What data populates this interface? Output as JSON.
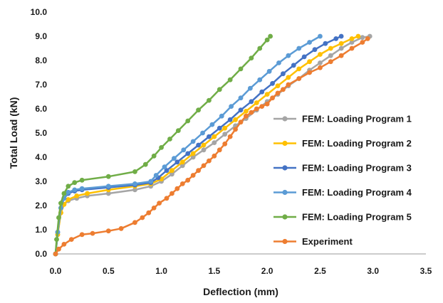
{
  "chart_data": {
    "type": "line",
    "title": "",
    "xlabel": "Deflection (mm)",
    "ylabel": "Total Load (kN)",
    "xlim": [
      0,
      3.5
    ],
    "ylim": [
      0,
      10
    ],
    "x_ticks": [
      "0.0",
      "0.5",
      "1.0",
      "1.5",
      "2.0",
      "2.5",
      "3.0",
      "3.5"
    ],
    "y_ticks": [
      "0.0",
      "1.0",
      "2.0",
      "3.0",
      "4.0",
      "5.0",
      "6.0",
      "7.0",
      "8.0",
      "9.0",
      "10.0"
    ],
    "grid": false,
    "legend_position": "right",
    "series": [
      {
        "name": "FEM: Loading Program 1",
        "color": "#a5a5a5",
        "points": [
          [
            0,
            0
          ],
          [
            0.02,
            0.8
          ],
          [
            0.05,
            1.7
          ],
          [
            0.08,
            2.05
          ],
          [
            0.12,
            2.2
          ],
          [
            0.2,
            2.3
          ],
          [
            0.3,
            2.4
          ],
          [
            0.5,
            2.5
          ],
          [
            0.75,
            2.65
          ],
          [
            0.9,
            2.8
          ],
          [
            1.0,
            3.0
          ],
          [
            1.1,
            3.3
          ],
          [
            1.2,
            3.65
          ],
          [
            1.3,
            4.0
          ],
          [
            1.4,
            4.3
          ],
          [
            1.5,
            4.6
          ],
          [
            1.6,
            4.95
          ],
          [
            1.7,
            5.3
          ],
          [
            1.8,
            5.6
          ],
          [
            1.9,
            5.95
          ],
          [
            2.0,
            6.3
          ],
          [
            2.1,
            6.6
          ],
          [
            2.2,
            6.95
          ],
          [
            2.3,
            7.25
          ],
          [
            2.4,
            7.6
          ],
          [
            2.5,
            7.9
          ],
          [
            2.6,
            8.2
          ],
          [
            2.7,
            8.5
          ],
          [
            2.8,
            8.75
          ],
          [
            2.9,
            8.95
          ],
          [
            2.97,
            9.0
          ]
        ]
      },
      {
        "name": "FEM: Loading Program 2",
        "color": "#ffc000",
        "points": [
          [
            0,
            0
          ],
          [
            0.02,
            0.8
          ],
          [
            0.05,
            1.7
          ],
          [
            0.08,
            2.05
          ],
          [
            0.12,
            2.25
          ],
          [
            0.2,
            2.4
          ],
          [
            0.3,
            2.5
          ],
          [
            0.5,
            2.65
          ],
          [
            0.75,
            2.8
          ],
          [
            0.9,
            2.9
          ],
          [
            1.0,
            3.1
          ],
          [
            1.1,
            3.45
          ],
          [
            1.2,
            3.8
          ],
          [
            1.3,
            4.15
          ],
          [
            1.4,
            4.5
          ],
          [
            1.5,
            4.85
          ],
          [
            1.6,
            5.2
          ],
          [
            1.7,
            5.55
          ],
          [
            1.8,
            5.9
          ],
          [
            1.9,
            6.25
          ],
          [
            2.0,
            6.6
          ],
          [
            2.1,
            6.95
          ],
          [
            2.2,
            7.3
          ],
          [
            2.3,
            7.65
          ],
          [
            2.4,
            7.95
          ],
          [
            2.5,
            8.25
          ],
          [
            2.6,
            8.5
          ],
          [
            2.7,
            8.7
          ],
          [
            2.8,
            8.9
          ],
          [
            2.86,
            9.0
          ]
        ]
      },
      {
        "name": "FEM: Loading Program 3",
        "color": "#4472c4",
        "points": [
          [
            0,
            0
          ],
          [
            0.02,
            0.9
          ],
          [
            0.05,
            1.9
          ],
          [
            0.08,
            2.3
          ],
          [
            0.12,
            2.5
          ],
          [
            0.18,
            2.6
          ],
          [
            0.25,
            2.65
          ],
          [
            0.5,
            2.75
          ],
          [
            0.75,
            2.85
          ],
          [
            0.9,
            2.95
          ],
          [
            0.97,
            3.15
          ],
          [
            1.05,
            3.45
          ],
          [
            1.15,
            3.8
          ],
          [
            1.25,
            4.15
          ],
          [
            1.35,
            4.5
          ],
          [
            1.45,
            4.85
          ],
          [
            1.55,
            5.2
          ],
          [
            1.65,
            5.55
          ],
          [
            1.75,
            5.95
          ],
          [
            1.85,
            6.3
          ],
          [
            1.95,
            6.7
          ],
          [
            2.05,
            7.05
          ],
          [
            2.15,
            7.45
          ],
          [
            2.25,
            7.8
          ],
          [
            2.35,
            8.15
          ],
          [
            2.45,
            8.45
          ],
          [
            2.55,
            8.7
          ],
          [
            2.65,
            8.9
          ],
          [
            2.7,
            9.0
          ]
        ]
      },
      {
        "name": "FEM: Loading Program 4",
        "color": "#5b9bd5",
        "points": [
          [
            0,
            0
          ],
          [
            0.02,
            0.9
          ],
          [
            0.05,
            1.9
          ],
          [
            0.08,
            2.3
          ],
          [
            0.12,
            2.55
          ],
          [
            0.18,
            2.65
          ],
          [
            0.25,
            2.7
          ],
          [
            0.5,
            2.8
          ],
          [
            0.75,
            2.9
          ],
          [
            0.9,
            3.0
          ],
          [
            0.95,
            3.25
          ],
          [
            1.03,
            3.6
          ],
          [
            1.12,
            3.95
          ],
          [
            1.21,
            4.3
          ],
          [
            1.3,
            4.65
          ],
          [
            1.39,
            5.0
          ],
          [
            1.48,
            5.35
          ],
          [
            1.57,
            5.7
          ],
          [
            1.66,
            6.1
          ],
          [
            1.75,
            6.45
          ],
          [
            1.84,
            6.85
          ],
          [
            1.93,
            7.2
          ],
          [
            2.02,
            7.55
          ],
          [
            2.11,
            7.9
          ],
          [
            2.2,
            8.2
          ],
          [
            2.3,
            8.5
          ],
          [
            2.4,
            8.75
          ],
          [
            2.5,
            9.0
          ]
        ]
      },
      {
        "name": "FEM: Loading Program 5",
        "color": "#70ad47",
        "points": [
          [
            0,
            0
          ],
          [
            0.01,
            0.6
          ],
          [
            0.03,
            1.5
          ],
          [
            0.05,
            2.1
          ],
          [
            0.08,
            2.5
          ],
          [
            0.12,
            2.8
          ],
          [
            0.18,
            2.95
          ],
          [
            0.25,
            3.05
          ],
          [
            0.5,
            3.2
          ],
          [
            0.75,
            3.4
          ],
          [
            0.85,
            3.7
          ],
          [
            0.93,
            4.05
          ],
          [
            1.0,
            4.4
          ],
          [
            1.08,
            4.75
          ],
          [
            1.16,
            5.1
          ],
          [
            1.25,
            5.5
          ],
          [
            1.35,
            5.95
          ],
          [
            1.45,
            6.35
          ],
          [
            1.55,
            6.8
          ],
          [
            1.65,
            7.2
          ],
          [
            1.75,
            7.65
          ],
          [
            1.85,
            8.1
          ],
          [
            1.93,
            8.5
          ],
          [
            2.0,
            8.85
          ],
          [
            2.03,
            9.0
          ]
        ]
      },
      {
        "name": "Experiment",
        "color": "#ed7d31",
        "points": [
          [
            0,
            0
          ],
          [
            0.03,
            0.2
          ],
          [
            0.08,
            0.4
          ],
          [
            0.15,
            0.6
          ],
          [
            0.25,
            0.8
          ],
          [
            0.35,
            0.85
          ],
          [
            0.5,
            0.95
          ],
          [
            0.62,
            1.05
          ],
          [
            0.75,
            1.3
          ],
          [
            0.82,
            1.5
          ],
          [
            0.88,
            1.7
          ],
          [
            0.93,
            1.9
          ],
          [
            0.98,
            2.1
          ],
          [
            1.05,
            2.3
          ],
          [
            1.1,
            2.5
          ],
          [
            1.15,
            2.7
          ],
          [
            1.2,
            2.9
          ],
          [
            1.25,
            3.05
          ],
          [
            1.3,
            3.25
          ],
          [
            1.35,
            3.45
          ],
          [
            1.4,
            3.65
          ],
          [
            1.45,
            3.85
          ],
          [
            1.5,
            4.05
          ],
          [
            1.55,
            4.3
          ],
          [
            1.6,
            4.55
          ],
          [
            1.65,
            4.85
          ],
          [
            1.7,
            5.15
          ],
          [
            1.75,
            5.45
          ],
          [
            1.8,
            5.7
          ],
          [
            1.85,
            5.85
          ],
          [
            1.9,
            6.0
          ],
          [
            1.95,
            6.1
          ],
          [
            2.0,
            6.2
          ],
          [
            2.05,
            6.45
          ],
          [
            2.1,
            6.65
          ],
          [
            2.15,
            6.8
          ],
          [
            2.2,
            7.0
          ],
          [
            2.3,
            7.25
          ],
          [
            2.4,
            7.5
          ],
          [
            2.5,
            7.7
          ],
          [
            2.6,
            7.95
          ],
          [
            2.7,
            8.2
          ],
          [
            2.8,
            8.5
          ],
          [
            2.9,
            8.75
          ],
          [
            2.95,
            8.9
          ]
        ]
      }
    ]
  }
}
